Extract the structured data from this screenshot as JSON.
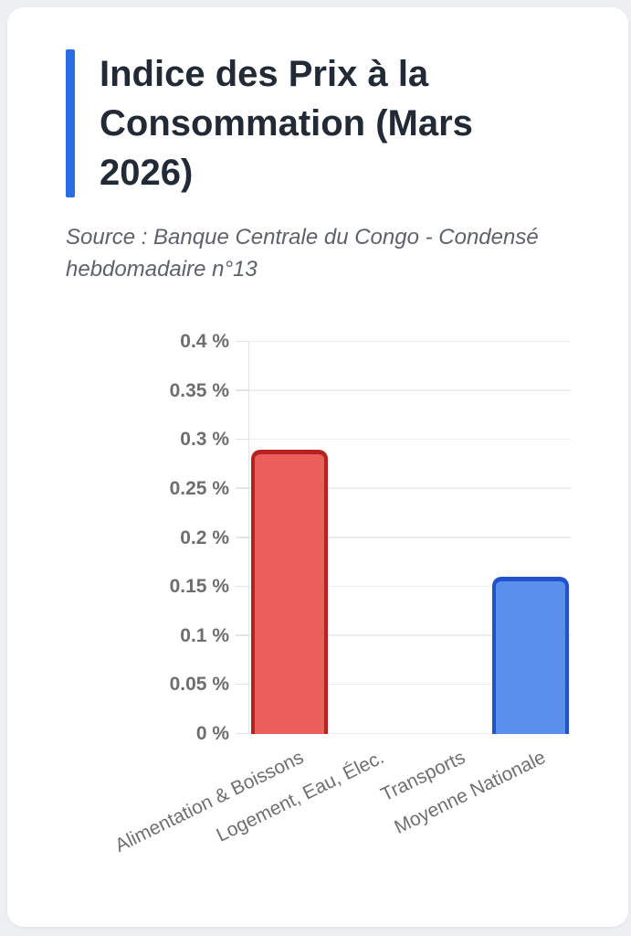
{
  "page": {
    "background_color": "#edeff2",
    "card_color": "#ffffff"
  },
  "header": {
    "title": "Indice des Prix à la Consommation (Mars 2026)",
    "accent_color": "#2b6ce5",
    "source": "Source : Banque Centrale du Congo - Condensé hebdomadaire n°13"
  },
  "chart_data": {
    "type": "bar",
    "title": "Indice des Prix à la Consommation (Mars 2026)",
    "categories": [
      "Alimentation & Boissons",
      "Logement, Eau, Élec.",
      "Transports",
      "Moyenne Nationale"
    ],
    "values": [
      0.29,
      0,
      0,
      0.16
    ],
    "unit": "%",
    "ylim": [
      0,
      0.4
    ],
    "ytick_step": 0.05,
    "ytick_labels_bottom_to_top": [
      "0 %",
      "0.05 %",
      "0.1 %",
      "0.15 %",
      "0.2 %",
      "0.25 %",
      "0.3 %",
      "0.35 %",
      "0.4 %"
    ],
    "grid": true,
    "legend": false,
    "xlabel": "",
    "ylabel": "",
    "xlabel_rotation_deg": -26,
    "bar_colors": [
      {
        "fill": "#ea5f5c",
        "border": "#b5221f"
      },
      {
        "fill": "#ea5f5c",
        "border": "#b5221f"
      },
      {
        "fill": "#ea5f5c",
        "border": "#b5221f"
      },
      {
        "fill": "#5a8feb",
        "border": "#1f52cc"
      }
    ]
  }
}
